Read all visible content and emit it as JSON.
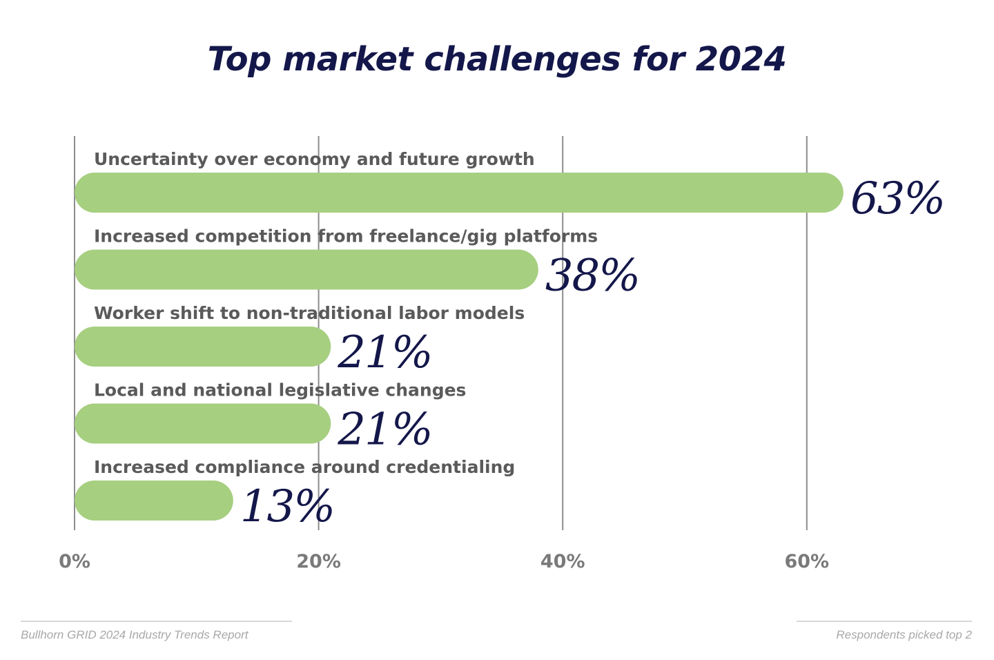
{
  "title": "Top market challenges for 2024",
  "footer": {
    "source": "Bullhorn GRID 2024 Industry Trends Report",
    "note": "Respondents picked top 2"
  },
  "colors": {
    "bar": "#a6cf80",
    "title": "#14174a",
    "label": "#5a5a5a",
    "value": "#14174a",
    "grid": "#8c8c8c",
    "tick": "#7a7a7a"
  },
  "chart_data": {
    "type": "bar",
    "orientation": "horizontal",
    "title": "Top market challenges for 2024",
    "categories": [
      "Uncertainty over economy and future growth",
      "Increased competition from freelance/gig platforms",
      "Worker shift to non-traditional labor models",
      "Local and national legislative changes",
      "Increased compliance around credentialing"
    ],
    "values": [
      63,
      38,
      21,
      21,
      13
    ],
    "value_labels": [
      "63%",
      "38%",
      "21%",
      "21%",
      "13%"
    ],
    "xlim": [
      0,
      60
    ],
    "xticks": [
      0,
      20,
      40,
      60
    ],
    "xtick_labels": [
      "0%",
      "20%",
      "40%",
      "60%"
    ],
    "grid": true,
    "legend": "none"
  }
}
